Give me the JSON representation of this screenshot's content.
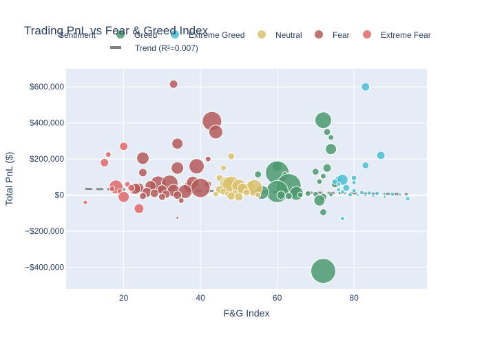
{
  "chart_data": {
    "type": "scatter",
    "title": "Trading PnL vs Fear & Greed Index",
    "xlabel": "F&G Index",
    "ylabel": "Total PnL ($)",
    "xlim": [
      5,
      99
    ],
    "ylim": [
      -520000,
      700000
    ],
    "x_ticks": [
      20,
      40,
      60,
      80
    ],
    "y_ticks": [
      -400000,
      -200000,
      0,
      200000,
      400000,
      600000
    ],
    "y_tick_labels": [
      "−$400,000",
      "−$200,000",
      "$0",
      "$200,000",
      "$400,000",
      "$600,000"
    ],
    "grid": true,
    "legend": {
      "title": "Sentiment",
      "placement": "top",
      "entries": [
        "Greed",
        "Extreme Greed",
        "Neutral",
        "Fear",
        "Extreme Fear",
        "Trend (R²=0.007)"
      ]
    },
    "series": [
      {
        "name": "Greed",
        "color": "#4c9a6f",
        "points": [
          [
            72,
            415000,
            12
          ],
          [
            73,
            350000,
            5
          ],
          [
            74,
            320000,
            4
          ],
          [
            74,
            255000,
            8
          ],
          [
            73,
            150000,
            6
          ],
          [
            70,
            130000,
            5
          ],
          [
            60,
            160000,
            7
          ],
          [
            60,
            125000,
            17
          ],
          [
            55,
            115000,
            5
          ],
          [
            62,
            115000,
            4
          ],
          [
            72,
            105000,
            4
          ],
          [
            71,
            75000,
            4
          ],
          [
            75,
            60000,
            5
          ],
          [
            63,
            50000,
            18
          ],
          [
            60,
            20000,
            16
          ],
          [
            56,
            15000,
            10
          ],
          [
            65,
            10000,
            10
          ],
          [
            68,
            8000,
            4
          ],
          [
            70,
            5000,
            4
          ],
          [
            72,
            4000,
            3
          ],
          [
            74,
            3000,
            3
          ],
          [
            66,
            2000,
            4
          ],
          [
            61,
            0,
            6
          ],
          [
            63,
            -5000,
            5
          ],
          [
            72,
            -10000,
            5
          ],
          [
            71,
            -30000,
            8
          ],
          [
            72,
            -95000,
            5
          ],
          [
            72,
            -420000,
            18
          ]
        ]
      },
      {
        "name": "Extreme Greed",
        "color": "#4bbfd6",
        "points": [
          [
            83,
            600000,
            6
          ],
          [
            87,
            220000,
            6
          ],
          [
            83,
            165000,
            5
          ],
          [
            80,
            95000,
            4
          ],
          [
            76,
            90000,
            5
          ],
          [
            77,
            85000,
            8
          ],
          [
            75,
            75000,
            4
          ],
          [
            80,
            70000,
            3
          ],
          [
            76,
            60000,
            3
          ],
          [
            78,
            40000,
            5
          ],
          [
            76,
            30000,
            3
          ],
          [
            80,
            25000,
            3
          ],
          [
            77,
            18000,
            3
          ],
          [
            82,
            15000,
            3
          ],
          [
            84,
            12000,
            3
          ],
          [
            86,
            10000,
            3
          ],
          [
            88,
            8000,
            2
          ],
          [
            90,
            5000,
            3
          ],
          [
            92,
            3000,
            2
          ],
          [
            79,
            2000,
            3
          ],
          [
            81,
            0,
            2
          ],
          [
            83,
            -2000,
            2
          ],
          [
            85,
            -5000,
            2
          ],
          [
            88,
            -8000,
            2
          ],
          [
            94,
            -20000,
            3
          ],
          [
            77,
            -130000,
            3
          ]
        ]
      },
      {
        "name": "Neutral",
        "color": "#dcc26e",
        "points": [
          [
            48,
            215000,
            5
          ],
          [
            46,
            150000,
            4
          ],
          [
            45,
            95000,
            5
          ],
          [
            47,
            60000,
            11
          ],
          [
            48,
            55000,
            13
          ],
          [
            50,
            50000,
            10
          ],
          [
            53,
            48000,
            7
          ],
          [
            54,
            40000,
            12
          ],
          [
            51,
            35000,
            8
          ],
          [
            45,
            30000,
            6
          ],
          [
            46,
            20000,
            5
          ],
          [
            52,
            15000,
            5
          ],
          [
            49,
            10000,
            5
          ],
          [
            47,
            8000,
            4
          ],
          [
            44,
            5000,
            4
          ],
          [
            55,
            2000,
            4
          ],
          [
            48,
            -5000,
            6
          ],
          [
            50,
            -10000,
            6
          ]
        ]
      },
      {
        "name": "Fear",
        "color": "#b55b5b",
        "points": [
          [
            33,
            615000,
            6
          ],
          [
            43,
            410000,
            14
          ],
          [
            44,
            350000,
            10
          ],
          [
            34,
            285000,
            8
          ],
          [
            25,
            205000,
            9
          ],
          [
            42,
            200000,
            4
          ],
          [
            39,
            160000,
            11
          ],
          [
            34,
            150000,
            9
          ],
          [
            25,
            125000,
            6
          ],
          [
            42,
            60000,
            5
          ],
          [
            37,
            45000,
            8
          ],
          [
            29,
            60000,
            12
          ],
          [
            32,
            65000,
            12
          ],
          [
            38,
            70000,
            9
          ],
          [
            40,
            40000,
            14
          ],
          [
            27,
            50000,
            8
          ],
          [
            24,
            40000,
            7
          ],
          [
            23,
            35000,
            8
          ],
          [
            33,
            25000,
            9
          ],
          [
            36,
            20000,
            10
          ],
          [
            30,
            30000,
            7
          ],
          [
            26,
            15000,
            7
          ],
          [
            28,
            10000,
            6
          ],
          [
            31,
            5000,
            6
          ],
          [
            34,
            0,
            6
          ],
          [
            25,
            -5000,
            5
          ],
          [
            30,
            -10000,
            5
          ],
          [
            35,
            -30000,
            4
          ],
          [
            34,
            -125000,
            2
          ]
        ]
      },
      {
        "name": "Extreme Fear",
        "color": "#e06767",
        "points": [
          [
            20,
            270000,
            6
          ],
          [
            16,
            225000,
            4
          ],
          [
            15,
            180000,
            6
          ],
          [
            18,
            45000,
            10
          ],
          [
            21,
            60000,
            4
          ],
          [
            22,
            40000,
            5
          ],
          [
            17,
            35000,
            4
          ],
          [
            19,
            20000,
            4
          ],
          [
            20,
            -10000,
            8
          ],
          [
            24,
            -75000,
            7
          ],
          [
            10,
            -40000,
            3
          ]
        ]
      }
    ],
    "trend": {
      "name": "Trend (R²=0.007)",
      "color": "#808080",
      "x": [
        10,
        94
      ],
      "y": [
        35000,
        5000
      ]
    }
  }
}
